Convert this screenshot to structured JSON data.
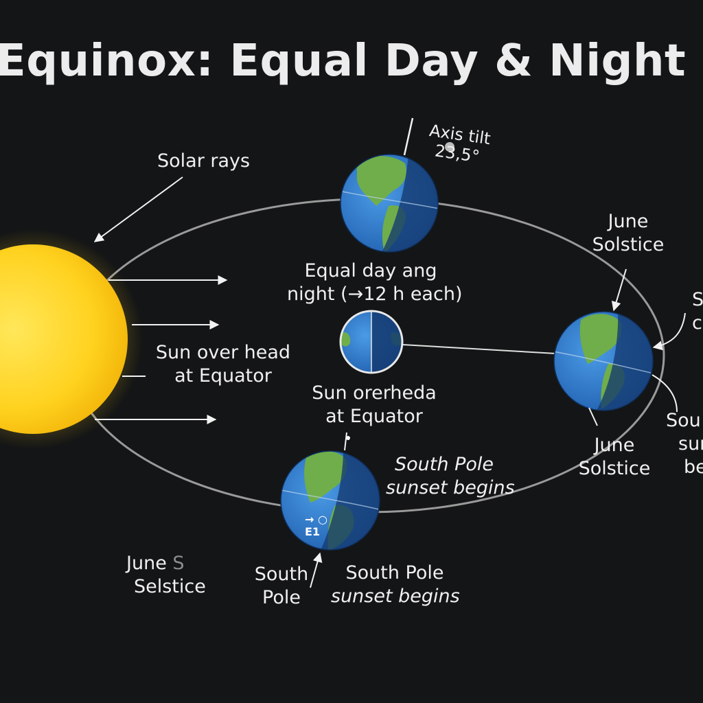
{
  "title": "Equinox: Equal Day & Night",
  "colors": {
    "background": "#141516",
    "sun": "#ffd21f",
    "ocean": "#2f7bd0",
    "land": "#6fae4a",
    "night": "#143a70",
    "orbit": "#9a9a9a",
    "text": "#f0f0f0"
  },
  "labels": {
    "solar_rays": "Solar rays",
    "axis_tilt_line1": "Axis tilt",
    "axis_tilt_line2": "23,5°",
    "equal_day_line1": "Equal day ang",
    "equal_day_line2": "night (→12 h each)",
    "june_solstice_top_line1": "June",
    "june_solstice_top_line2": "Solstice",
    "sun_overhead_left_line1": "Sun over head",
    "sun_overhead_left_line2": "at Equator",
    "sun_overhead_mid_line1": "Sun orerheda",
    "sun_overhead_mid_line2": "at Equator",
    "south_pole_sunset_right_line1": "South Pole",
    "south_pole_sunset_right_line2": "sunset begins",
    "june_solstice_right_line1": "June",
    "june_solstice_right_line2": "Solstice",
    "june_selstice_line1a": "June",
    "june_selstice_line1b": "S",
    "june_selstice_line2": "Selstice",
    "south_pole_line1": "South",
    "south_pole_line2": "Pole",
    "south_pole_sunset_bottom_line1": "South Pole",
    "south_pole_sunset_bottom_line2": "sunset begins",
    "edge_top_fragment_line1": "S",
    "edge_top_fragment_line2": "c",
    "edge_bottom_fragment_line1": "Sou",
    "edge_bottom_fragment_line2": "sur",
    "edge_bottom_fragment_line3": "be",
    "globe_mark_line1": "→ ○",
    "globe_mark_line2": "E1"
  }
}
